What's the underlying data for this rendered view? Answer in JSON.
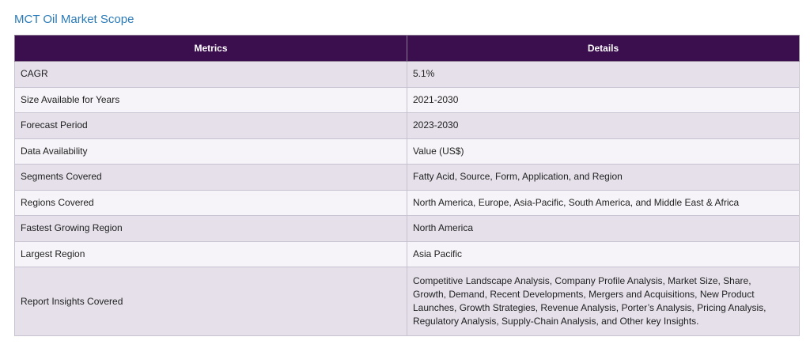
{
  "page": {
    "title": "MCT Oil Market Scope"
  },
  "table": {
    "headers": {
      "metrics": "Metrics",
      "details": "Details"
    },
    "rows": [
      {
        "metric": "CAGR",
        "detail": "5.1%"
      },
      {
        "metric": "Size Available for Years",
        "detail": "2021-2030"
      },
      {
        "metric": "Forecast Period",
        "detail": "2023-2030"
      },
      {
        "metric": "Data Availability",
        "detail": "Value (US$)"
      },
      {
        "metric": "Segments Covered",
        "detail": "Fatty Acid, Source, Form, Application, and Region"
      },
      {
        "metric": "Regions Covered",
        "detail": "North America, Europe, Asia-Pacific, South America, and Middle East & Africa"
      },
      {
        "metric": "Fastest Growing Region",
        "detail": "North America"
      },
      {
        "metric": "Largest Region",
        "detail": "Asia Pacific"
      },
      {
        "metric": "Report Insights Covered",
        "detail": "Competitive Landscape Analysis, Company Profile Analysis, Market Size, Share, Growth, Demand, Recent Developments, Mergers and Acquisitions, New Product Launches, Growth Strategies, Revenue Analysis, Porter’s Analysis, Pricing Analysis, Regulatory Analysis, Supply-Chain Analysis, and Other key Insights."
      }
    ]
  }
}
